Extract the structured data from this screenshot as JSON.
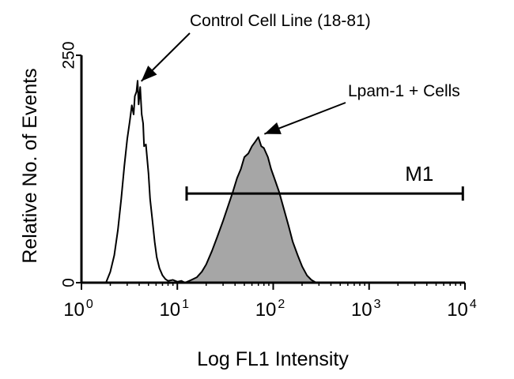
{
  "chart_data": {
    "type": "area",
    "title": "",
    "xlabel": "Log FL1 Intensity",
    "ylabel": "Relative No. of Events",
    "xscale": "log",
    "xlim": [
      1,
      10000
    ],
    "ylim": [
      0,
      250
    ],
    "x_ticks": [
      {
        "value": 1,
        "base": "10",
        "exp": "0"
      },
      {
        "value": 10,
        "base": "10",
        "exp": "1"
      },
      {
        "value": 100,
        "base": "10",
        "exp": "2"
      },
      {
        "value": 1000,
        "base": "10",
        "exp": "3"
      },
      {
        "value": 10000,
        "base": "10",
        "exp": "4"
      }
    ],
    "y_ticks": [
      {
        "value": 0,
        "label": "0"
      },
      {
        "value": 250,
        "label": "250"
      }
    ],
    "grid": false,
    "series": [
      {
        "name": "Control Cell Line (18-81)",
        "style": "outline",
        "color": "#000000",
        "x": [
          1.8,
          2.0,
          2.2,
          2.4,
          2.6,
          2.8,
          3.0,
          3.2,
          3.35,
          3.5,
          3.6,
          3.75,
          3.85,
          3.95,
          4.1,
          4.25,
          4.4,
          4.5,
          4.7,
          5.0,
          5.2,
          5.5,
          5.8,
          6.1,
          6.5,
          7.0,
          7.5,
          8.0,
          9.0,
          10.0,
          11.0,
          12.0,
          13.0
        ],
        "y": [
          0,
          12,
          30,
          58,
          92,
          128,
          158,
          178,
          195,
          185,
          205,
          210,
          222,
          196,
          215,
          185,
          175,
          150,
          152,
          120,
          92,
          68,
          45,
          28,
          16,
          8,
          4,
          2,
          3,
          1,
          2,
          0,
          0
        ]
      },
      {
        "name": "Lpam-1 + Cells",
        "style": "filled",
        "color": "#a6a6a6",
        "x": [
          12.0,
          14.0,
          16.0,
          18.0,
          20.0,
          23.0,
          26.0,
          30.0,
          34.0,
          38.0,
          42.0,
          46.0,
          50.0,
          55.0,
          60.0,
          65.0,
          70.0,
          75.0,
          80.0,
          88.0,
          95.0,
          105.0,
          115.0,
          130.0,
          145.0,
          160.0,
          180.0,
          200.0,
          225.0,
          250.0,
          280.0
        ],
        "y": [
          0,
          3,
          6,
          12,
          20,
          35,
          50,
          68,
          85,
          100,
          115,
          125,
          138,
          142,
          150,
          155,
          160,
          150,
          148,
          138,
          125,
          112,
          100,
          80,
          62,
          45,
          30,
          18,
          8,
          3,
          0
        ]
      }
    ],
    "marker": {
      "label": "M1",
      "x_start": 12.5,
      "x_end": 9500,
      "y": 98
    },
    "annotations": [
      {
        "text": "Control Cell Line (18-81)",
        "arrow_to_x": 3.9,
        "arrow_to_y": 218
      },
      {
        "text": "Lpam-1 + Cells",
        "arrow_to_x": 75,
        "arrow_to_y": 160
      }
    ]
  }
}
